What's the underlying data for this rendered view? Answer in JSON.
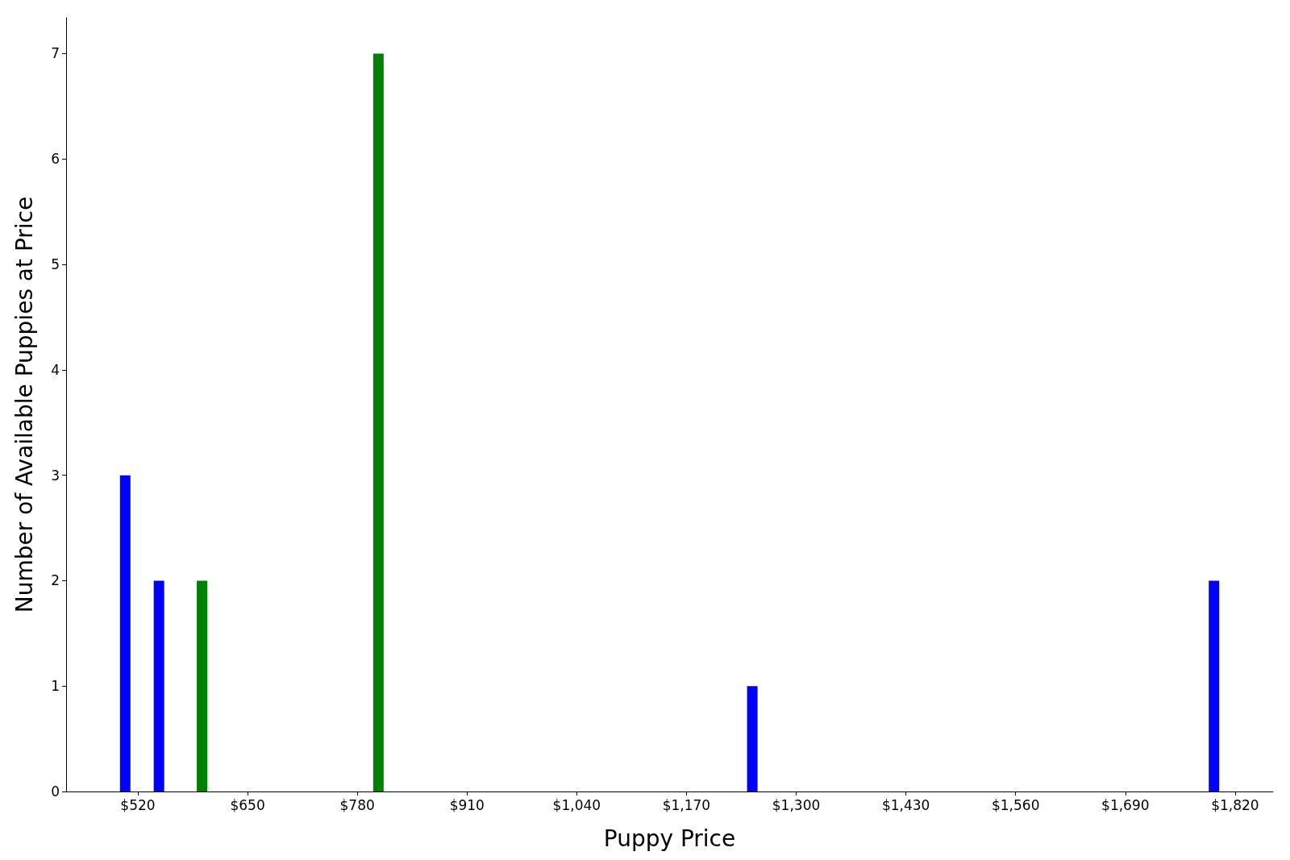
{
  "chart_data": {
    "type": "bar",
    "xlabel": "Puppy Price",
    "ylabel": "Number of Available Puppies at Price",
    "x": [
      505,
      545,
      596,
      805,
      1248,
      1795
    ],
    "values": [
      3,
      2,
      2,
      7,
      1,
      2
    ],
    "colors": [
      "#0000ff",
      "#0000ff",
      "#008000",
      "#008000",
      "#0000ff",
      "#0000ff"
    ],
    "xlim": [
      435,
      1865
    ],
    "xticks": [
      {
        "value": 520,
        "label": "$520"
      },
      {
        "value": 650,
        "label": "$650"
      },
      {
        "value": 780,
        "label": "$780"
      },
      {
        "value": 910,
        "label": "$910"
      },
      {
        "value": 1040,
        "label": "$1,040"
      },
      {
        "value": 1170,
        "label": "$1,170"
      },
      {
        "value": 1300,
        "label": "$1,300"
      },
      {
        "value": 1430,
        "label": "$1,430"
      },
      {
        "value": 1560,
        "label": "$1,560"
      },
      {
        "value": 1690,
        "label": "$1,690"
      },
      {
        "value": 1820,
        "label": "$1,820"
      }
    ],
    "ylim": [
      0,
      7.34
    ],
    "yticks": [
      0,
      1,
      2,
      3,
      4,
      5,
      6,
      7
    ],
    "grid": false
  }
}
